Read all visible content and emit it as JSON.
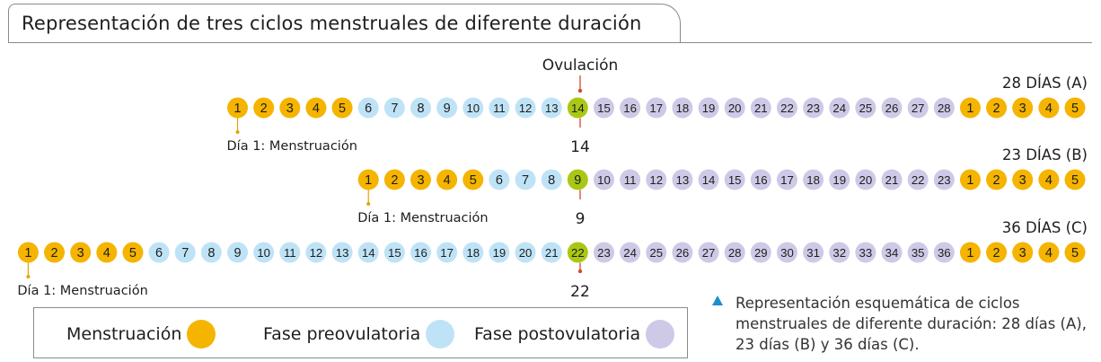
{
  "title": "Representación de tres ciclos menstruales de diferente duración",
  "ovulation_label": "Ovulación",
  "colors": {
    "menstruation": "#f5b400",
    "preovulatory": "#bfe3f6",
    "ovulation": "#a9c814",
    "postovulatory": "#cec9e6",
    "marker": "#d24b2a",
    "pointer": "#e8a200"
  },
  "cycles": [
    {
      "id": "A",
      "label": "28 DÍAS (A)",
      "length": 28,
      "menstruation_days": 5,
      "ovulation_day": 14,
      "ovulation_number": "14",
      "day1_label": "Día 1: Menstruación",
      "next_cycle_days": [
        1,
        2,
        3,
        4,
        5
      ]
    },
    {
      "id": "B",
      "label": "23 DÍAS (B)",
      "length": 23,
      "menstruation_days": 5,
      "ovulation_day": 9,
      "ovulation_number": "9",
      "day1_label": "Día 1: Menstruación",
      "next_cycle_days": [
        1,
        2,
        3,
        4,
        5
      ]
    },
    {
      "id": "C",
      "label": "36 DÍAS (C)",
      "length": 36,
      "menstruation_days": 5,
      "ovulation_day": 22,
      "ovulation_number": "22",
      "day1_label": "Día 1: Menstruación",
      "next_cycle_days": [
        1,
        2,
        3,
        4,
        5
      ]
    }
  ],
  "legend": {
    "menstruation": "Menstruación",
    "preovulatory": "Fase preovulatoria",
    "postovulatory": "Fase postovulatoria"
  },
  "caption": "Representación esquemática de ciclos menstruales de diferente duración: 28 días (A), 23 días (B) y 36 días (C)."
}
